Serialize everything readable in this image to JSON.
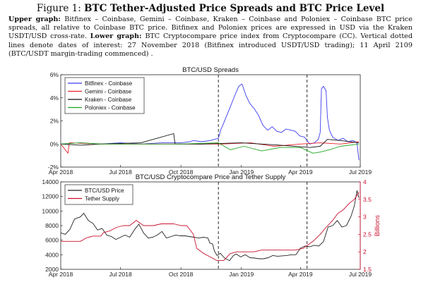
{
  "caption": {
    "figure_label": "Figure 1:",
    "figure_title": "BTC Tether-Adjusted Price Spreads and BTC Price Level",
    "upper_label": "Upper graph:",
    "upper_text": "Bitfinex – Coinbase, Gemini – Coinbase, Kraken – Coinbase and Poloniex – Coinbase BTC price spreads, all relative to Coinbase BTC price. Bitfinex and Poloniex prices are expressed in USD via the Kraken USDT/USD cross-rate.",
    "lower_label": "Lower graph:",
    "lower_text": "BTC Cryptocompare price index from Cryptocompare (CC). Vertical dotted lines denote dates of interest: 27 November 2018 (Bitfinex introduced USDT/USD trading); 11 April 2109 (BTC/USDT margin-trading commenced) ."
  },
  "chart_data": [
    {
      "type": "line",
      "title": "BTC/USD Spreads",
      "xlabel": "",
      "ylabel": "",
      "x_range": [
        "2018-04-01",
        "2019-07-01"
      ],
      "x_ticks": [
        "Apr 2018",
        "Jul 2018",
        "Oct 2018",
        "Jan 2019",
        "Apr 2019",
        "Jul 2019"
      ],
      "ylim": [
        -2,
        6
      ],
      "y_ticks": [
        "-2%",
        "0%",
        "2%",
        "4%",
        "6%"
      ],
      "legend_position": "top-left",
      "event_dates": [
        "2018-11-27",
        "2019-04-11"
      ],
      "grid": false,
      "series": [
        {
          "name": "Bitfinex - Coinbase",
          "color": "#3b3bf0",
          "points": [
            [
              "2018-04-01",
              0.0
            ],
            [
              "2018-05-01",
              0.1
            ],
            [
              "2018-06-01",
              0.0
            ],
            [
              "2018-07-01",
              0.1
            ],
            [
              "2018-08-01",
              0.0
            ],
            [
              "2018-09-01",
              0.1
            ],
            [
              "2018-10-01",
              0.1
            ],
            [
              "2018-10-15",
              0.2
            ],
            [
              "2018-10-20",
              0.3
            ],
            [
              "2018-11-01",
              0.2
            ],
            [
              "2018-11-15",
              0.3
            ],
            [
              "2018-11-27",
              0.5
            ],
            [
              "2018-12-01",
              1.3
            ],
            [
              "2018-12-05",
              1.8
            ],
            [
              "2018-12-10",
              2.5
            ],
            [
              "2018-12-15",
              3.2
            ],
            [
              "2018-12-22",
              4.2
            ],
            [
              "2018-12-28",
              5.0
            ],
            [
              "2019-01-02",
              5.2
            ],
            [
              "2019-01-08",
              4.2
            ],
            [
              "2019-01-14",
              3.5
            ],
            [
              "2019-01-20",
              3.1
            ],
            [
              "2019-01-27",
              2.5
            ],
            [
              "2019-02-03",
              1.6
            ],
            [
              "2019-02-10",
              1.2
            ],
            [
              "2019-02-17",
              1.5
            ],
            [
              "2019-02-24",
              1.1
            ],
            [
              "2019-03-03",
              1.0
            ],
            [
              "2019-03-10",
              1.3
            ],
            [
              "2019-03-17",
              1.2
            ],
            [
              "2019-03-24",
              1.1
            ],
            [
              "2019-03-31",
              0.7
            ],
            [
              "2019-04-07",
              0.6
            ],
            [
              "2019-04-11",
              0.3
            ],
            [
              "2019-04-15",
              0.0
            ],
            [
              "2019-04-22",
              0.1
            ],
            [
              "2019-04-28",
              0.4
            ],
            [
              "2019-05-01",
              1.0
            ],
            [
              "2019-05-03",
              4.8
            ],
            [
              "2019-05-06",
              5.0
            ],
            [
              "2019-05-10",
              4.6
            ],
            [
              "2019-05-12",
              2.3
            ],
            [
              "2019-05-15",
              1.2
            ],
            [
              "2019-05-20",
              0.6
            ],
            [
              "2019-05-28",
              0.3
            ],
            [
              "2019-06-05",
              0.5
            ],
            [
              "2019-06-12",
              0.2
            ],
            [
              "2019-06-20",
              0.3
            ],
            [
              "2019-06-26",
              0.1
            ],
            [
              "2019-06-29",
              -1.4
            ]
          ]
        },
        {
          "name": "Gemini - Coinbase",
          "color": "#e8202a",
          "points": [
            [
              "2018-04-01",
              0.0
            ],
            [
              "2018-04-12",
              -0.8
            ],
            [
              "2018-04-14",
              0.1
            ],
            [
              "2018-06-01",
              0.0
            ],
            [
              "2018-08-01",
              0.0
            ],
            [
              "2018-10-01",
              0.0
            ],
            [
              "2018-12-01",
              0.0
            ],
            [
              "2019-01-15",
              0.1
            ],
            [
              "2019-02-20",
              -0.2
            ],
            [
              "2019-04-01",
              0.0
            ],
            [
              "2019-05-01",
              0.1
            ],
            [
              "2019-06-01",
              0.0
            ],
            [
              "2019-06-29",
              0.2
            ]
          ]
        },
        {
          "name": "Kraken - Coinbase",
          "color": "#111111",
          "points": [
            [
              "2018-04-01",
              0.0
            ],
            [
              "2018-05-01",
              -0.1
            ],
            [
              "2018-06-01",
              0.0
            ],
            [
              "2018-08-01",
              0.1
            ],
            [
              "2018-09-20",
              0.9
            ],
            [
              "2018-09-22",
              0.0
            ],
            [
              "2018-11-01",
              0.0
            ],
            [
              "2019-01-01",
              0.1
            ],
            [
              "2019-03-01",
              -0.1
            ],
            [
              "2019-04-15",
              -0.3
            ],
            [
              "2019-05-01",
              -0.2
            ],
            [
              "2019-05-12",
              0.4
            ],
            [
              "2019-06-01",
              0.3
            ],
            [
              "2019-06-29",
              0.1
            ]
          ]
        },
        {
          "name": "Poloniex - Coinbase",
          "color": "#1fa51f",
          "points": [
            [
              "2018-04-01",
              0.0
            ],
            [
              "2018-05-01",
              0.1
            ],
            [
              "2018-06-01",
              0.0
            ],
            [
              "2018-08-01",
              0.0
            ],
            [
              "2018-10-01",
              0.0
            ],
            [
              "2018-11-27",
              0.1
            ],
            [
              "2018-12-15",
              -0.5
            ],
            [
              "2019-01-05",
              -0.2
            ],
            [
              "2019-02-01",
              -0.6
            ],
            [
              "2019-03-01",
              -0.3
            ],
            [
              "2019-04-01",
              -0.3
            ],
            [
              "2019-04-20",
              -0.8
            ],
            [
              "2019-05-01",
              -0.7
            ],
            [
              "2019-05-15",
              -0.5
            ],
            [
              "2019-06-01",
              -0.2
            ],
            [
              "2019-06-29",
              0.0
            ]
          ]
        }
      ]
    },
    {
      "type": "line",
      "title": "BTC/USD Cryptocompare Price and Tether Supply",
      "xlabel": "",
      "x_range": [
        "2018-04-01",
        "2019-07-01"
      ],
      "x_ticks": [
        "Apr 2018",
        "Jul 2018",
        "Oct 2018",
        "Jan 2019",
        "Apr 2019",
        "Jul 2019"
      ],
      "ylim_left": [
        2000,
        14000
      ],
      "y_ticks_left": [
        "2000",
        "4000",
        "6000",
        "8000",
        "10000",
        "12000",
        "14000"
      ],
      "ylabel_right": "Billions",
      "ylim_right": [
        1.5,
        4
      ],
      "y_ticks_right": [
        "1.5",
        "2",
        "2.5",
        "3",
        "3.5",
        "4"
      ],
      "right_axis_color": "#c8102e",
      "legend_position": "top-left",
      "event_dates": [
        "2018-11-27",
        "2019-04-11"
      ],
      "grid": false,
      "series": [
        {
          "name": "BTC/USD Price",
          "axis": "left",
          "color": "#222222",
          "points": [
            [
              "2018-04-01",
              7000
            ],
            [
              "2018-04-08",
              6800
            ],
            [
              "2018-04-15",
              7500
            ],
            [
              "2018-04-22",
              8900
            ],
            [
              "2018-05-01",
              9200
            ],
            [
              "2018-05-06",
              9700
            ],
            [
              "2018-05-13",
              8700
            ],
            [
              "2018-05-20",
              8300
            ],
            [
              "2018-05-27",
              7400
            ],
            [
              "2018-06-03",
              7600
            ],
            [
              "2018-06-10",
              6700
            ],
            [
              "2018-06-17",
              6500
            ],
            [
              "2018-06-24",
              6100
            ],
            [
              "2018-07-01",
              6400
            ],
            [
              "2018-07-08",
              6700
            ],
            [
              "2018-07-15",
              6400
            ],
            [
              "2018-07-22",
              7400
            ],
            [
              "2018-07-29",
              8200
            ],
            [
              "2018-08-05",
              7000
            ],
            [
              "2018-08-12",
              6300
            ],
            [
              "2018-08-19",
              6400
            ],
            [
              "2018-08-26",
              6700
            ],
            [
              "2018-09-02",
              7200
            ],
            [
              "2018-09-09",
              6300
            ],
            [
              "2018-09-16",
              6500
            ],
            [
              "2018-09-23",
              6700
            ],
            [
              "2018-09-30",
              6600
            ],
            [
              "2018-10-07",
              6600
            ],
            [
              "2018-10-14",
              6500
            ],
            [
              "2018-10-21",
              6400
            ],
            [
              "2018-10-28",
              6300
            ],
            [
              "2018-11-04",
              6400
            ],
            [
              "2018-11-11",
              6300
            ],
            [
              "2018-11-14",
              5600
            ],
            [
              "2018-11-18",
              5500
            ],
            [
              "2018-11-21",
              4500
            ],
            [
              "2018-11-25",
              3900
            ],
            [
              "2018-11-30",
              4200
            ],
            [
              "2018-12-07",
              3500
            ],
            [
              "2018-12-14",
              3200
            ],
            [
              "2018-12-20",
              3900
            ],
            [
              "2018-12-24",
              4100
            ],
            [
              "2018-12-31",
              3700
            ],
            [
              "2019-01-07",
              4000
            ],
            [
              "2019-01-14",
              3600
            ],
            [
              "2019-01-21",
              3550
            ],
            [
              "2019-01-28",
              3450
            ],
            [
              "2019-02-04",
              3450
            ],
            [
              "2019-02-11",
              3600
            ],
            [
              "2019-02-18",
              3900
            ],
            [
              "2019-02-25",
              3800
            ],
            [
              "2019-03-04",
              3850
            ],
            [
              "2019-03-11",
              3900
            ],
            [
              "2019-03-18",
              4000
            ],
            [
              "2019-03-25",
              4000
            ],
            [
              "2019-04-01",
              4900
            ],
            [
              "2019-04-08",
              5200
            ],
            [
              "2019-04-15",
              5100
            ],
            [
              "2019-04-22",
              5300
            ],
            [
              "2019-04-29",
              5200
            ],
            [
              "2019-05-06",
              5800
            ],
            [
              "2019-05-13",
              7800
            ],
            [
              "2019-05-20",
              8000
            ],
            [
              "2019-05-27",
              8700
            ],
            [
              "2019-06-03",
              7800
            ],
            [
              "2019-06-10",
              8000
            ],
            [
              "2019-06-17",
              9300
            ],
            [
              "2019-06-22",
              10700
            ],
            [
              "2019-06-26",
              12800
            ],
            [
              "2019-06-29",
              11800
            ]
          ]
        },
        {
          "name": "Tether Supply",
          "axis": "right",
          "color": "#c8102e",
          "points": [
            [
              "2018-04-01",
              2.3
            ],
            [
              "2018-05-01",
              2.3
            ],
            [
              "2018-05-10",
              2.4
            ],
            [
              "2018-05-20",
              2.45
            ],
            [
              "2018-06-01",
              2.45
            ],
            [
              "2018-06-05",
              2.55
            ],
            [
              "2018-06-15",
              2.6
            ],
            [
              "2018-06-25",
              2.7
            ],
            [
              "2018-07-05",
              2.75
            ],
            [
              "2018-07-15",
              2.75
            ],
            [
              "2018-07-25",
              2.9
            ],
            [
              "2018-08-05",
              2.75
            ],
            [
              "2018-08-20",
              2.75
            ],
            [
              "2018-09-01",
              2.8
            ],
            [
              "2018-09-10",
              2.8
            ],
            [
              "2018-09-20",
              2.8
            ],
            [
              "2018-10-01",
              2.75
            ],
            [
              "2018-10-10",
              2.75
            ],
            [
              "2018-10-20",
              2.5
            ],
            [
              "2018-10-25",
              2.1
            ],
            [
              "2018-11-05",
              1.95
            ],
            [
              "2018-11-15",
              1.85
            ],
            [
              "2018-11-25",
              1.75
            ],
            [
              "2018-12-05",
              1.75
            ],
            [
              "2018-12-15",
              1.95
            ],
            [
              "2018-12-25",
              2.0
            ],
            [
              "2019-01-05",
              2.0
            ],
            [
              "2019-01-20",
              2.0
            ],
            [
              "2019-02-01",
              2.05
            ],
            [
              "2019-02-20",
              2.05
            ],
            [
              "2019-03-10",
              2.05
            ],
            [
              "2019-03-25",
              2.05
            ],
            [
              "2019-04-05",
              2.1
            ],
            [
              "2019-04-20",
              2.3
            ],
            [
              "2019-05-01",
              2.5
            ],
            [
              "2019-05-10",
              2.7
            ],
            [
              "2019-05-20",
              2.9
            ],
            [
              "2019-05-28",
              3.1
            ],
            [
              "2019-06-05",
              3.2
            ],
            [
              "2019-06-15",
              3.4
            ],
            [
              "2019-06-22",
              3.5
            ],
            [
              "2019-06-29",
              3.7
            ]
          ]
        }
      ]
    }
  ]
}
